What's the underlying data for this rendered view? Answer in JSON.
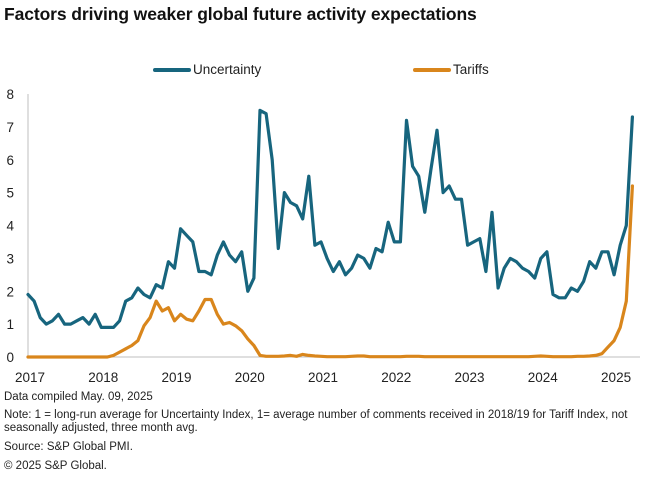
{
  "title": "Factors driving weaker global future activity expectations",
  "footer": {
    "compiled": "Data compiled May. 09, 2025",
    "note": "Note: 1 = long-run average for Uncertainty Index, 1= average number of comments received in 2018/19 for Tariff Index, not seasonally adjusted, three month avg.",
    "source": "Source: S&P Global PMI.",
    "copyright": "© 2025 S&P Global."
  },
  "chart_data": {
    "type": "line",
    "title": "Factors driving weaker global future activity expectations",
    "xlabel": "",
    "ylabel": "",
    "ylim": [
      0,
      8
    ],
    "yticks": [
      0,
      1,
      2,
      3,
      4,
      5,
      6,
      7,
      8
    ],
    "xticks": [
      "2017",
      "2018",
      "2019",
      "2020",
      "2021",
      "2022",
      "2023",
      "2024",
      "2025"
    ],
    "x_start": "2017-01",
    "x_frequency": "monthly",
    "grid": false,
    "legend_position": "top",
    "series": [
      {
        "name": "Uncertainty",
        "color": "#17657E",
        "values": [
          1.9,
          1.7,
          1.2,
          1.0,
          1.1,
          1.3,
          1.0,
          1.0,
          1.1,
          1.2,
          1.0,
          1.3,
          0.9,
          0.9,
          0.9,
          1.1,
          1.7,
          1.8,
          2.1,
          1.9,
          1.8,
          2.2,
          2.1,
          2.9,
          2.7,
          3.9,
          3.7,
          3.5,
          2.6,
          2.6,
          2.5,
          3.1,
          3.5,
          3.1,
          2.9,
          3.2,
          2.0,
          2.4,
          7.5,
          7.4,
          6.0,
          3.3,
          5.0,
          4.7,
          4.6,
          4.2,
          5.5,
          3.4,
          3.5,
          3.0,
          2.6,
          2.9,
          2.5,
          2.7,
          3.1,
          3.0,
          2.7,
          3.3,
          3.2,
          4.1,
          3.5,
          3.5,
          7.2,
          5.8,
          5.5,
          4.4,
          5.7,
          6.9,
          5.0,
          5.2,
          4.8,
          4.8,
          3.4,
          3.5,
          3.6,
          2.6,
          4.4,
          2.1,
          2.7,
          3.0,
          2.9,
          2.7,
          2.6,
          2.4,
          3.0,
          3.2,
          1.9,
          1.8,
          1.8,
          2.1,
          2.0,
          2.3,
          2.9,
          2.7,
          3.2,
          3.2,
          2.5,
          3.4,
          4.0,
          7.3
        ]
      },
      {
        "name": "Tariffs",
        "color": "#D9861C",
        "values": [
          0,
          0,
          0,
          0,
          0,
          0,
          0,
          0,
          0,
          0,
          0,
          0,
          0,
          0,
          0.05,
          0.15,
          0.25,
          0.35,
          0.5,
          0.95,
          1.2,
          1.7,
          1.4,
          1.5,
          1.1,
          1.3,
          1.15,
          1.1,
          1.4,
          1.75,
          1.75,
          1.3,
          1.0,
          1.05,
          0.95,
          0.8,
          0.55,
          0.35,
          0.05,
          0.02,
          0.02,
          0.02,
          0.03,
          0.05,
          0.02,
          0.08,
          0.05,
          0.03,
          0.02,
          0.01,
          0.01,
          0.01,
          0.01,
          0.02,
          0.03,
          0.03,
          0.01,
          0.01,
          0.01,
          0.01,
          0.01,
          0.01,
          0.02,
          0.02,
          0.02,
          0.01,
          0.01,
          0.01,
          0.01,
          0.01,
          0.01,
          0.01,
          0.01,
          0.01,
          0.01,
          0.01,
          0.01,
          0.01,
          0.01,
          0.01,
          0.01,
          0.01,
          0.01,
          0.02,
          0.03,
          0.02,
          0.01,
          0.01,
          0.01,
          0.01,
          0.02,
          0.02,
          0.03,
          0.05,
          0.1,
          0.3,
          0.5,
          0.9,
          1.7,
          5.2
        ]
      }
    ]
  }
}
